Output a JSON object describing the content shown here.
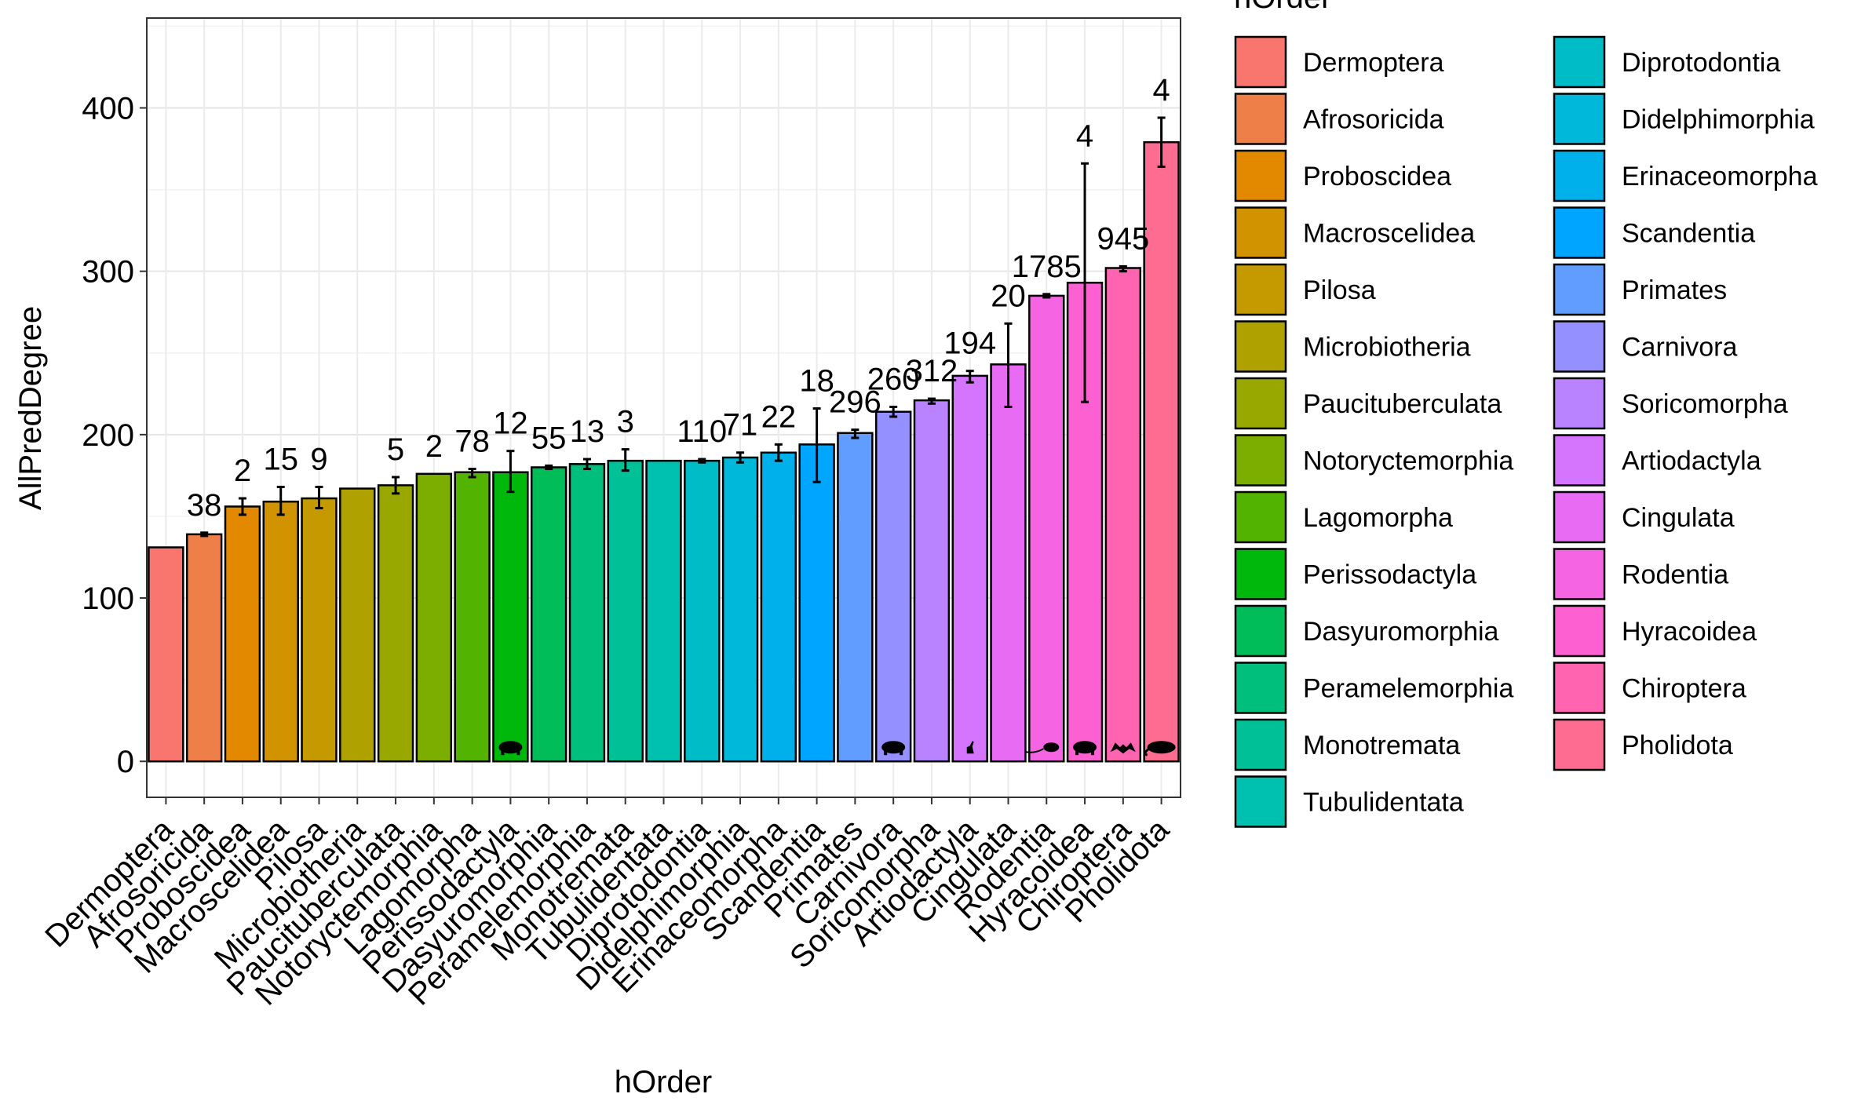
{
  "chart_data": {
    "type": "bar",
    "xlabel": "hOrder",
    "ylabel": "AllPredDegree",
    "ylim": [
      -22,
      455
    ],
    "yticks": [
      0,
      100,
      200,
      300,
      400
    ],
    "grid": true,
    "legend": {
      "title": "hOrder",
      "placement": "right",
      "columns": 2
    },
    "categories": [
      "Dermoptera",
      "Afrosoricida",
      "Proboscidea",
      "Macroscelidea",
      "Pilosa",
      "Microbiotheria",
      "Paucituberculata",
      "Notoryctemorphia",
      "Lagomorpha",
      "Perissodactyla",
      "Dasyuromorphia",
      "Peramelemorphia",
      "Monotremata",
      "Tubulidentata",
      "Diprotodontia",
      "Didelphimorphia",
      "Erinaceomorpha",
      "Scandentia",
      "Primates",
      "Carnivora",
      "Soricomorpha",
      "Artiodactyla",
      "Cingulata",
      "Rodentia",
      "Hyracoidea",
      "Chiroptera",
      "Pholidota"
    ],
    "values": [
      131,
      139,
      156,
      159,
      161,
      167,
      169,
      176,
      177,
      177,
      180,
      182,
      184,
      184,
      184,
      186,
      189,
      194,
      201,
      214,
      221,
      236,
      243,
      285,
      293,
      302,
      379
    ],
    "error_low": [
      131,
      138,
      151,
      151,
      155,
      167,
      164,
      176,
      174,
      165,
      179,
      179,
      178,
      184,
      183,
      183,
      184,
      171,
      198,
      211,
      219,
      232,
      217,
      284,
      220,
      300,
      364
    ],
    "error_high": [
      131,
      140,
      161,
      168,
      168,
      167,
      174,
      176,
      179,
      190,
      181,
      185,
      191,
      184,
      185,
      189,
      194,
      216,
      203,
      217,
      222,
      239,
      268,
      286,
      366,
      303,
      394
    ],
    "bar_labels": [
      "",
      "38",
      "2",
      "15",
      "9",
      "",
      "5",
      "2",
      "78",
      "12",
      "55",
      "13",
      "3",
      "",
      "110",
      "71",
      "22",
      "18",
      "296",
      "260",
      "312",
      "194",
      "20",
      "1785",
      "4",
      "945",
      "4"
    ],
    "colors": [
      "#F8766D",
      "#EF7F49",
      "#E38900",
      "#D19300",
      "#C49A00",
      "#AFA100",
      "#99A800",
      "#7CAE00",
      "#53B400",
      "#00B70C",
      "#00BC59",
      "#00BF7D",
      "#00C097",
      "#00C0AF",
      "#00BCC6",
      "#00B8DA",
      "#00B0EB",
      "#00A5FF",
      "#619CFF",
      "#9590FF",
      "#B983FF",
      "#D575FE",
      "#E76BF3",
      "#F564E3",
      "#FD61D1",
      "#FF64B0",
      "#FF6C91"
    ],
    "silhouettes": [
      "",
      "",
      "",
      "",
      "",
      "",
      "",
      "",
      "",
      "rhino-silhouette-icon",
      "",
      "",
      "",
      "",
      "",
      "",
      "",
      "",
      "",
      "canid-silhouette-icon",
      "",
      "deer-silhouette-icon",
      "",
      "rodent-silhouette-icon",
      "hyrax-silhouette-icon",
      "bat-silhouette-icon",
      "pangolin-silhouette-icon"
    ]
  }
}
